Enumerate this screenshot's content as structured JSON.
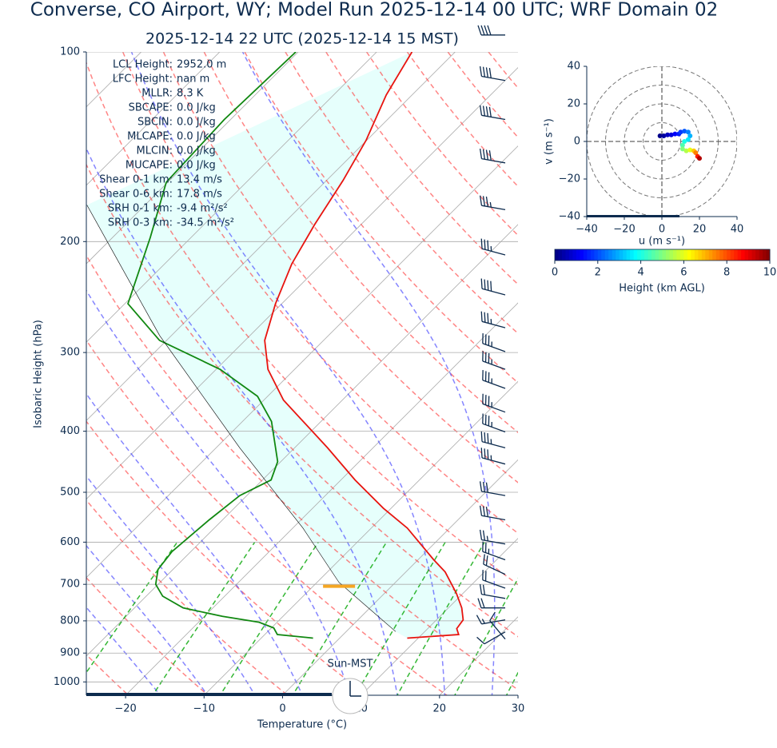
{
  "chart_data": [
    {
      "type": "skewt",
      "title": "Converse, CO Airport, WY; Model Run 2025-12-14 00 UTC; WRF Domain 02",
      "subtitle": "2025-12-14 22 UTC  (2025-12-14 15 MST)",
      "x_label": "Temperature (°C)",
      "y_label": "Isobaric Height (hPa)",
      "xlim": [
        -25,
        30
      ],
      "xticks": [
        {
          "value": -20,
          "label": "−20"
        },
        {
          "value": -10,
          "label": "−10"
        },
        0,
        10,
        20,
        30
      ],
      "ylim": [
        100,
        1050
      ],
      "yticks": [
        100,
        200,
        300,
        400,
        500,
        600,
        700,
        800,
        900,
        1000
      ],
      "log_y": true,
      "grid": true,
      "series": [
        {
          "color": "#e8140f",
          "pressure": [
            852,
            841,
            823,
            797,
            763,
            724,
            669,
            640,
            570,
            530,
            478,
            425,
            357,
            319,
            287,
            251,
            217,
            188,
            160,
            138,
            117,
            100
          ],
          "values": [
            8.6,
            14.7,
            13.7,
            13.4,
            11.7,
            9.2,
            5.0,
            2.0,
            -5.4,
            -11.0,
            -18.2,
            -25.8,
            -37.5,
            -43.4,
            -47.5,
            -50.8,
            -53.8,
            -55.9,
            -57.9,
            -60.1,
            -63.3,
            -65.5
          ]
        },
        {
          "color": "#118811",
          "pressure": [
            852,
            841,
            821,
            804,
            787,
            763,
            731,
            700,
            663,
            621,
            553,
            506,
            478,
            447,
            386,
            352,
            319,
            287,
            251,
            197,
            161,
            128,
            100
          ],
          "values": [
            -3.4,
            -8.4,
            -9.7,
            -12.3,
            -17.7,
            -23.8,
            -27.9,
            -30.3,
            -31.9,
            -32.4,
            -31.7,
            -30.9,
            -28.9,
            -30.4,
            -36.3,
            -41.3,
            -49.5,
            -60.9,
            -69.6,
            -75.2,
            -80.2,
            -80.8,
            -80.3
          ]
        },
        {
          "color": "#000000",
          "pressure": [
            832,
            695,
            570,
            425,
            282,
            175
          ],
          "values": [
            6.3,
            -7.2,
            -18.7,
            -37.0,
            -61.5,
            -87.4
          ]
        }
      ],
      "lcl_pressure": 705,
      "stats": [
        {
          "label": "LCL Height:",
          "value": "2952.0 m"
        },
        {
          "label": "LFC Height:",
          "value": "nan m"
        },
        {
          "label": "MLLR:",
          "value": "8.3 K"
        },
        {
          "label": "SBCAPE:",
          "value": "0.0 J/kg"
        },
        {
          "label": "SBCIN:",
          "value": "0.0 J/kg"
        },
        {
          "label": "MLCAPE:",
          "value": "0.0 J/kg"
        },
        {
          "label": "MLCIN:",
          "value": "0.0 J/kg"
        },
        {
          "label": "MUCAPE:",
          "value": "0.0 J/kg"
        },
        {
          "label": "Shear 0-1 km:",
          "value": "13.4 m/s"
        },
        {
          "label": "Shear 0-6 km:",
          "value": "17.8 m/s"
        },
        {
          "label": "SRH 0-1 km:",
          "value": "-9.4 m²/s²"
        },
        {
          "label": "SRH 0-3 km:",
          "value": "-34.5 m²/s²"
        }
      ],
      "wind": {
        "pressure": [
          94,
          111,
          128,
          150,
          178,
          210,
          243,
          274,
          299,
          319,
          342,
          373,
          401,
          425,
          451,
          506,
          553,
          604,
          640,
          675,
          710,
          737,
          763,
          797,
          833,
          855
        ],
        "speed": [
          40,
          40,
          40,
          40,
          35,
          35,
          40,
          35,
          35,
          35,
          35,
          35,
          35,
          35,
          35,
          30,
          30,
          25,
          25,
          20,
          20,
          20,
          20,
          15,
          10,
          10
        ],
        "direction": [
          270,
          280,
          280,
          280,
          280,
          285,
          285,
          285,
          290,
          290,
          290,
          290,
          290,
          285,
          285,
          280,
          280,
          280,
          290,
          295,
          290,
          280,
          270,
          260,
          240,
          320
        ],
        "color": "#0d2b4e"
      },
      "clock_label": "Sun-MST"
    },
    {
      "type": "hodograph",
      "x_label": "u (m s⁻¹)",
      "y_label": "v (m s⁻¹)",
      "xlim": [
        -40,
        40
      ],
      "ylim": [
        -40,
        40
      ],
      "xticks": [
        {
          "value": -40,
          "label": "−40"
        },
        {
          "value": -20,
          "label": "−20"
        },
        0,
        20,
        40
      ],
      "yticks": [
        {
          "value": -40,
          "label": "−40"
        },
        {
          "value": -20,
          "label": "−20"
        },
        0,
        20,
        40
      ],
      "rings": [
        10,
        20,
        30,
        40
      ],
      "u": [
        -1,
        1,
        3,
        5,
        7,
        9,
        10,
        12,
        14,
        15,
        14,
        12,
        11,
        11,
        13,
        15,
        17,
        18,
        19,
        20
      ],
      "v": [
        3,
        3,
        3.5,
        3.5,
        4,
        4,
        5,
        5.5,
        5,
        3,
        1,
        0,
        -2,
        -4,
        -5,
        -4.5,
        -5,
        -6,
        -8,
        -9
      ],
      "heights": [
        0.1,
        0.3,
        0.6,
        0.9,
        1.2,
        1.5,
        1.8,
        2.1,
        2.5,
        3,
        3.5,
        4,
        4.5,
        5,
        5.5,
        6,
        6.8,
        7.5,
        8.5,
        9.5
      ],
      "colorbar": {
        "label": "Height (km AGL)",
        "lim": [
          0,
          10
        ],
        "ticks": [
          0,
          2,
          4,
          6,
          8,
          10
        ]
      }
    }
  ]
}
